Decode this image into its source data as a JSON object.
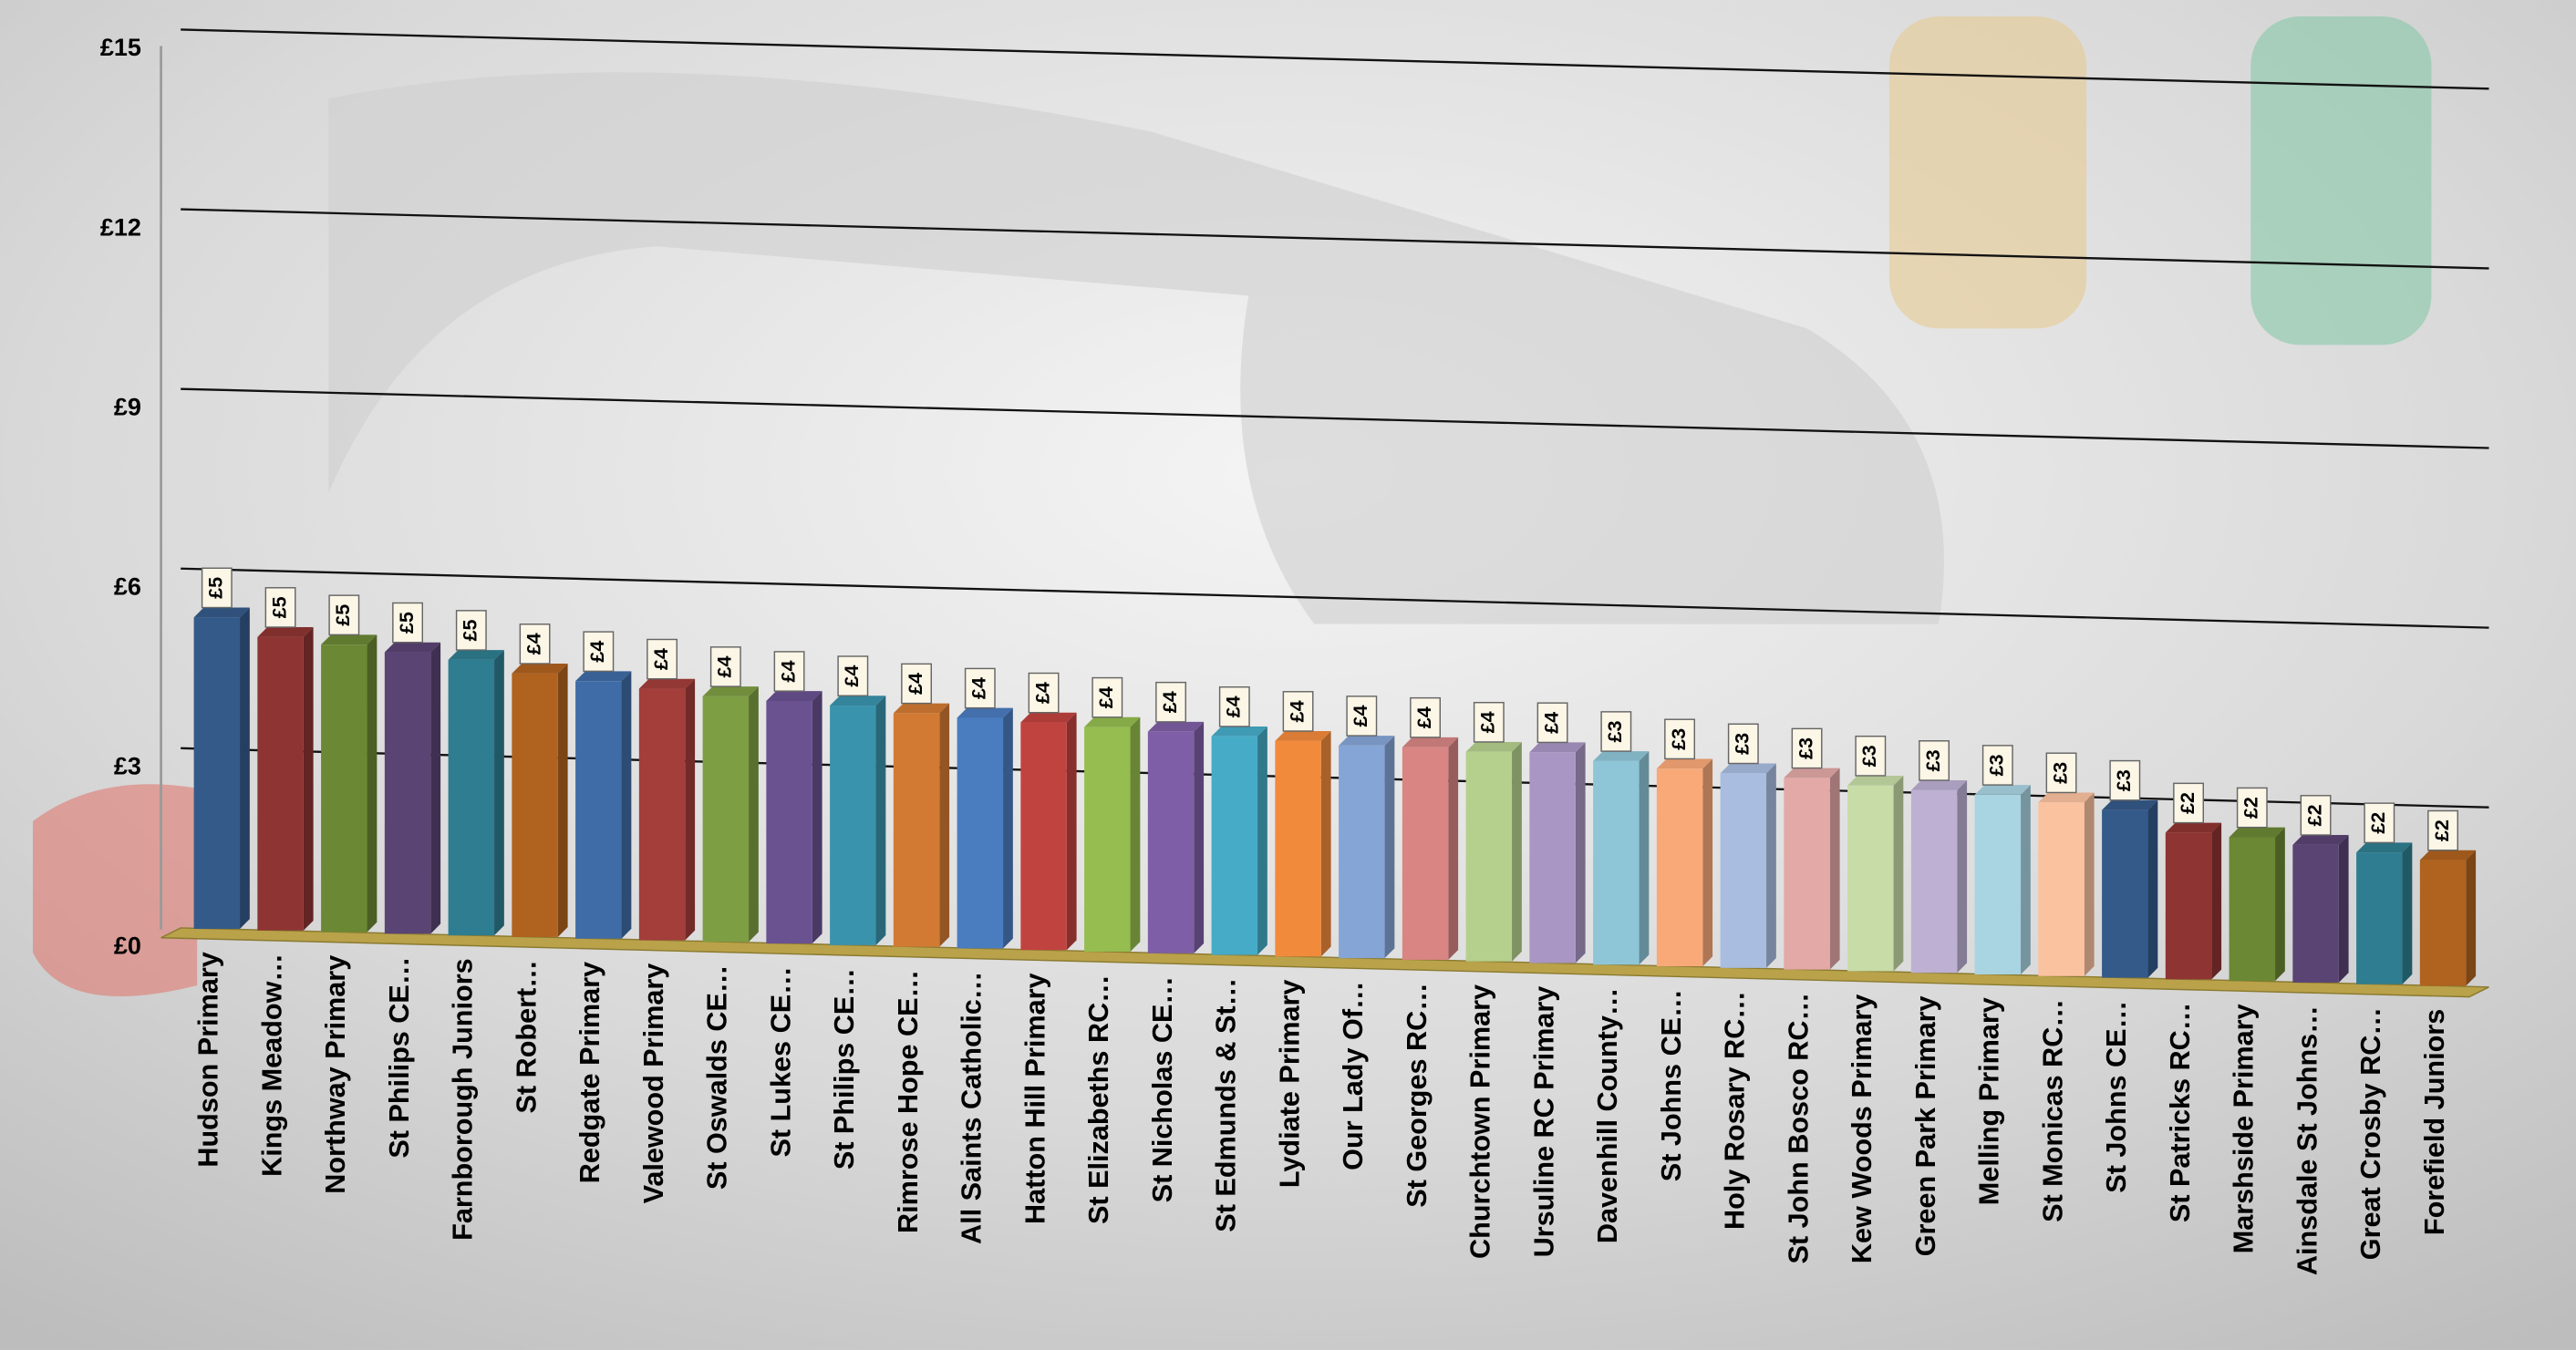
{
  "chart_data": {
    "type": "bar",
    "categories": [
      "Hudson Primary",
      "Kings Meadow…",
      "Northway Primary",
      "St Philips CE…",
      "Farnborough Juniors",
      "St Robert…",
      "Redgate Primary",
      "Valewood Primary",
      "St Oswalds CE…",
      "St Lukes CE…",
      "St Philips CE…",
      "Rimrose Hope CE…",
      "All Saints Catholic…",
      "Hatton Hill Primary",
      "St Elizabeths RC…",
      "St Nicholas CE…",
      "St Edmunds & St…",
      "Lydiate Primary",
      "Our Lady Of…",
      "St Georges RC…",
      "Churchtown Primary",
      "Ursuline RC Primary",
      "Davenhill County…",
      "St Johns CE…",
      "Holy Rosary RC…",
      "St John Bosco RC…",
      "Kew Woods Primary",
      "Green Park Primary",
      "Melling Primary",
      "St Monicas RC…",
      "St Johns CE…",
      "St Patricks RC…",
      "Marshside Primary",
      "Ainsdale St Johns…",
      "Great Crosby RC…",
      "Forefield Juniors"
    ],
    "values": [
      5.2,
      4.9,
      4.8,
      4.7,
      4.6,
      4.4,
      4.3,
      4.2,
      4.1,
      4.05,
      4.0,
      3.9,
      3.85,
      3.8,
      3.75,
      3.7,
      3.65,
      3.6,
      3.55,
      3.55,
      3.5,
      3.52,
      3.4,
      3.3,
      3.25,
      3.2,
      3.1,
      3.05,
      3.0,
      2.9,
      2.8,
      2.45,
      2.4,
      2.3,
      2.2,
      2.1
    ],
    "value_labels": [
      "£5",
      "£5",
      "£5",
      "£5",
      "£5",
      "£4",
      "£4",
      "£4",
      "£4",
      "£4",
      "£4",
      "£4",
      "£4",
      "£4",
      "£4",
      "£4",
      "£4",
      "£4",
      "£4",
      "£4",
      "£4",
      "£4",
      "£3",
      "£3",
      "£3",
      "£3",
      "£3",
      "£3",
      "£3",
      "£3",
      "£3",
      "£2",
      "£2",
      "£2",
      "£2",
      "£2"
    ],
    "colors": [
      "#345a8a",
      "#8e3432",
      "#6b8834",
      "#5a4474",
      "#2f7d90",
      "#b0621f",
      "#3f6ca6",
      "#a33e3b",
      "#7e9e44",
      "#6a5190",
      "#3a93ac",
      "#d27a33",
      "#4a7cc0",
      "#c0433f",
      "#95bd4f",
      "#7e5ea6",
      "#46abc7",
      "#f28a3c",
      "#85a5d6",
      "#d88583",
      "#b5d08c",
      "#a996c4",
      "#8ec6d8",
      "#f9a978",
      "#a9bde0",
      "#e3a9a7",
      "#c7dca7",
      "#bdb0d3",
      "#a9d4e2",
      "#fbc2a0"
    ],
    "ylim": [
      0,
      15
    ],
    "yticks": [
      {
        "value": 0,
        "label": "£0"
      },
      {
        "value": 3,
        "label": "£3"
      },
      {
        "value": 6,
        "label": "£6"
      },
      {
        "value": 9,
        "label": "£9"
      },
      {
        "value": 12,
        "label": "£12"
      },
      {
        "value": 15,
        "label": "£15"
      }
    ],
    "grid": true
  }
}
